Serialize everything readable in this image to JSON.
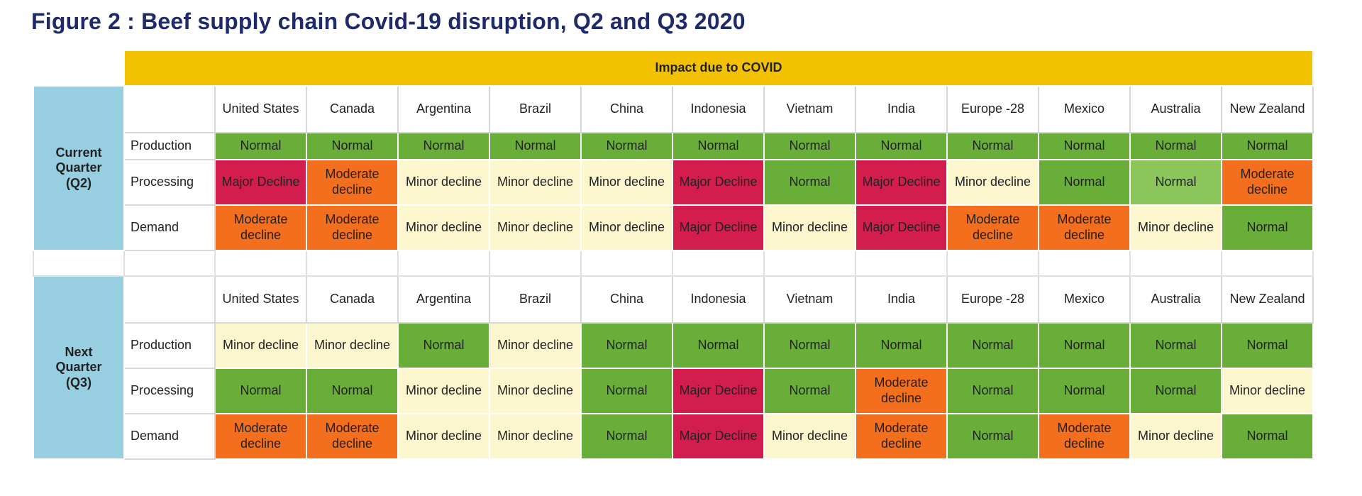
{
  "title": "Figure 2 : Beef supply chain Covid-19 disruption, Q2 and Q3 2020",
  "banner": "Impact due to COVID",
  "countries": [
    "United States",
    "Canada",
    "Argentina",
    "Brazil",
    "China",
    "Indonesia",
    "Vietnam",
    "India",
    "Europe -28",
    "Mexico",
    "Australia",
    "New Zealand"
  ],
  "colors": {
    "Normal": "#6aae3a",
    "Minor decline": "#fcf6cf",
    "Moderate decline": "#f36f1d",
    "Major Decline": "#d41d4f",
    "banner": "#f2c200",
    "side": "#98cfe0"
  },
  "chart_data": {
    "type": "table",
    "title": "Figure 2 : Beef supply chain Covid-19 disruption, Q2 and Q3 2020",
    "sections": [
      {
        "label": "Current Quarter (Q2)",
        "rows": [
          {
            "name": "Production",
            "values": [
              "Normal",
              "Normal",
              "Normal",
              "Normal",
              "Normal",
              "Normal",
              "Normal",
              "Normal",
              "Normal",
              "Normal",
              "Normal",
              "Normal"
            ]
          },
          {
            "name": "Processing",
            "values": [
              "Major Decline",
              "Moderate decline",
              "Minor decline",
              "Minor decline",
              "Minor decline",
              "Major Decline",
              "Normal",
              "Major Decline",
              "Minor decline",
              "Normal",
              "Normal",
              "Moderate decline"
            ]
          },
          {
            "name": "Demand",
            "values": [
              "Moderate decline",
              "Moderate decline",
              "Minor decline",
              "Minor decline",
              "Minor decline",
              "Major Decline",
              "Minor decline",
              "Major Decline",
              "Moderate decline",
              "Moderate decline",
              "Minor decline",
              "Normal"
            ]
          }
        ]
      },
      {
        "label": "Next Quarter (Q3)",
        "rows": [
          {
            "name": "Production",
            "values": [
              "Minor decline",
              "Minor decline",
              "Normal",
              "Minor decline",
              "Normal",
              "Normal",
              "Normal",
              "Normal",
              "Normal",
              "Normal",
              "Normal",
              "Normal"
            ]
          },
          {
            "name": "Processing",
            "values": [
              "Normal",
              "Normal",
              "Minor decline",
              "Minor decline",
              "Normal",
              "Major Decline",
              "Normal",
              "Moderate decline",
              "Normal",
              "Normal",
              "Normal",
              "Minor decline"
            ]
          },
          {
            "name": "Demand",
            "values": [
              "Moderate decline",
              "Moderate decline",
              "Minor decline",
              "Minor decline",
              "Normal",
              "Major Decline",
              "Minor decline",
              "Moderate decline",
              "Normal",
              "Moderate decline",
              "Minor decline",
              "Normal"
            ]
          }
        ]
      }
    ]
  }
}
